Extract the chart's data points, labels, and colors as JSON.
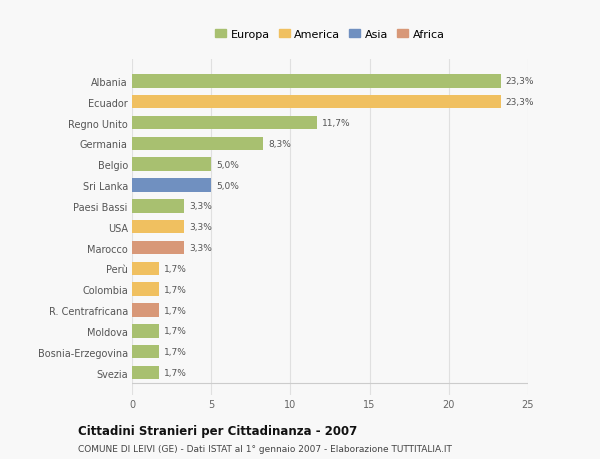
{
  "categories": [
    "Albania",
    "Ecuador",
    "Regno Unito",
    "Germania",
    "Belgio",
    "Sri Lanka",
    "Paesi Bassi",
    "USA",
    "Marocco",
    "Perù",
    "Colombia",
    "R. Centrafricana",
    "Moldova",
    "Bosnia-Erzegovina",
    "Svezia"
  ],
  "values": [
    23.3,
    23.3,
    11.7,
    8.3,
    5.0,
    5.0,
    3.3,
    3.3,
    3.3,
    1.7,
    1.7,
    1.7,
    1.7,
    1.7,
    1.7
  ],
  "labels": [
    "23,3%",
    "23,3%",
    "11,7%",
    "8,3%",
    "5,0%",
    "5,0%",
    "3,3%",
    "3,3%",
    "3,3%",
    "1,7%",
    "1,7%",
    "1,7%",
    "1,7%",
    "1,7%",
    "1,7%"
  ],
  "colors": [
    "#a8c070",
    "#f0c060",
    "#a8c070",
    "#a8c070",
    "#a8c070",
    "#7090c0",
    "#a8c070",
    "#f0c060",
    "#d89878",
    "#f0c060",
    "#f0c060",
    "#d89878",
    "#a8c070",
    "#a8c070",
    "#a8c070"
  ],
  "legend_labels": [
    "Europa",
    "America",
    "Asia",
    "Africa"
  ],
  "legend_colors": [
    "#a8c070",
    "#f0c060",
    "#7090c0",
    "#d89878"
  ],
  "title": "Cittadini Stranieri per Cittadinanza - 2007",
  "subtitle": "COMUNE DI LEIVI (GE) - Dati ISTAT al 1° gennaio 2007 - Elaborazione TUTTITALIA.IT",
  "xlim": [
    0,
    25
  ],
  "xticks": [
    0,
    5,
    10,
    15,
    20,
    25
  ],
  "bg_color": "#f8f8f8",
  "bar_height": 0.65,
  "grid_color": "#e0e0e0"
}
